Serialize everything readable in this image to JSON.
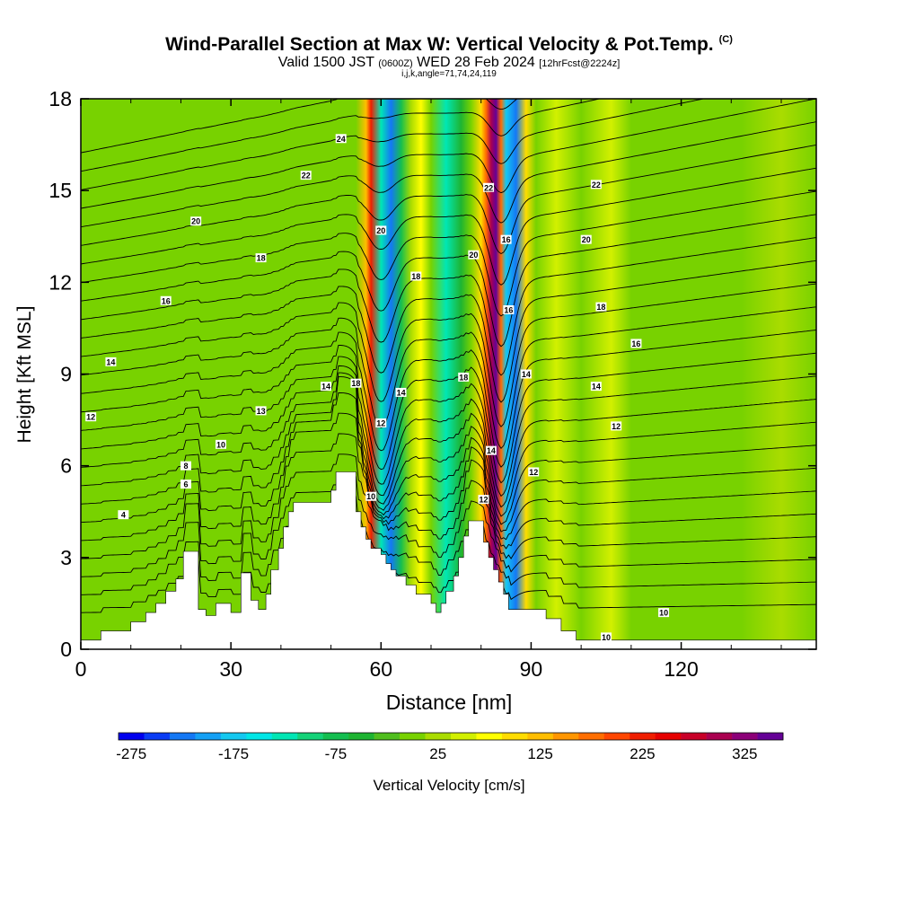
{
  "header": {
    "title": "Wind-Parallel Section at Max W: Vertical Velocity & Pot.Temp.",
    "copyright": "(C)",
    "valid_prefix": "Valid 1500 JST",
    "valid_utc": "(0600Z)",
    "valid_date": "WED 28 Feb 2024",
    "forecast": "[12hrFcst@2224z]",
    "ijk": "i,j,k,angle=71,74,24,119"
  },
  "chart_data": {
    "type": "heatmap",
    "xlabel": "Distance [nm]",
    "ylabel": "Height [Kft MSL]",
    "xlim": [
      0,
      147
    ],
    "ylim": [
      0,
      18
    ],
    "x_ticks": [
      0,
      30,
      60,
      90,
      120
    ],
    "y_ticks": [
      0,
      3,
      6,
      9,
      12,
      15,
      18
    ],
    "colorbar": {
      "label": "Vertical Velocity [cm/s]",
      "tick_labels": [
        "-275",
        "-175",
        "-75",
        "25",
        "125",
        "225",
        "325"
      ],
      "colors": [
        "#0000ee",
        "#0a3cf5",
        "#1478f5",
        "#14a0f5",
        "#14c8f0",
        "#00e6e6",
        "#00e6b4",
        "#14d278",
        "#14be50",
        "#1eb432",
        "#50be1e",
        "#78d200",
        "#aadc00",
        "#d2f000",
        "#ffff00",
        "#ffdc00",
        "#ffbe00",
        "#ff9600",
        "#ff6e00",
        "#ff4600",
        "#f01e00",
        "#e60000",
        "#c80028",
        "#aa0050",
        "#8c0078",
        "#640096"
      ]
    },
    "vertical_velocity_columns": [
      {
        "x": 0,
        "w": 10
      },
      {
        "x": 20,
        "w": 5
      },
      {
        "x": 35,
        "w": 20
      },
      {
        "x": 40,
        "w": 10
      },
      {
        "x": 48,
        "w": 10
      },
      {
        "x": 55,
        "w": 5
      },
      {
        "x": 57,
        "w": 140
      },
      {
        "x": 58,
        "w": 260
      },
      {
        "x": 60,
        "w": -150
      },
      {
        "x": 62,
        "w": -240
      },
      {
        "x": 64,
        "w": -80
      },
      {
        "x": 66,
        "w": 40
      },
      {
        "x": 68,
        "w": 90
      },
      {
        "x": 70,
        "w": 20
      },
      {
        "x": 73,
        "w": -140
      },
      {
        "x": 76,
        "w": -60
      },
      {
        "x": 78,
        "w": 10
      },
      {
        "x": 80,
        "w": 120
      },
      {
        "x": 81,
        "w": 220
      },
      {
        "x": 82,
        "w": 340
      },
      {
        "x": 83,
        "w": 420
      },
      {
        "x": 84,
        "w": 200
      },
      {
        "x": 85,
        "w": -200
      },
      {
        "x": 87,
        "w": -250
      },
      {
        "x": 89,
        "w": 110
      },
      {
        "x": 91,
        "w": 20
      },
      {
        "x": 95,
        "w": 60
      },
      {
        "x": 100,
        "w": 20
      },
      {
        "x": 106,
        "w": 50
      },
      {
        "x": 110,
        "w": 10
      },
      {
        "x": 120,
        "w": 10
      },
      {
        "x": 126,
        "w": 20
      },
      {
        "x": 132,
        "w": 5
      },
      {
        "x": 140,
        "w": 25
      },
      {
        "x": 147,
        "w": 10
      }
    ],
    "potential_temperature_labels": [
      {
        "text": "24",
        "x": 52,
        "y": 16.7
      },
      {
        "text": "22",
        "x": 45,
        "y": 15.5
      },
      {
        "text": "20",
        "x": 23,
        "y": 14.0
      },
      {
        "text": "18",
        "x": 36,
        "y": 12.8
      },
      {
        "text": "16",
        "x": 17,
        "y": 11.4
      },
      {
        "text": "14",
        "x": 6,
        "y": 9.4
      },
      {
        "text": "12",
        "x": 2,
        "y": 7.6
      },
      {
        "text": "4",
        "x": 8.5,
        "y": 4.4
      },
      {
        "text": "6",
        "x": 21,
        "y": 5.4
      },
      {
        "text": "8",
        "x": 21,
        "y": 6.0
      },
      {
        "text": "10",
        "x": 28,
        "y": 6.7
      },
      {
        "text": "13",
        "x": 36,
        "y": 7.8
      },
      {
        "text": "14",
        "x": 49,
        "y": 8.6
      },
      {
        "text": "18",
        "x": 55,
        "y": 8.7
      },
      {
        "text": "20",
        "x": 60,
        "y": 13.7
      },
      {
        "text": "18",
        "x": 67,
        "y": 12.2
      },
      {
        "text": "14",
        "x": 64,
        "y": 8.4
      },
      {
        "text": "12",
        "x": 60,
        "y": 7.4
      },
      {
        "text": "10",
        "x": 58,
        "y": 5.0
      },
      {
        "text": "22",
        "x": 81.5,
        "y": 15.1
      },
      {
        "text": "20",
        "x": 78.5,
        "y": 12.9
      },
      {
        "text": "18",
        "x": 76.5,
        "y": 8.9
      },
      {
        "text": "16",
        "x": 85,
        "y": 13.4
      },
      {
        "text": "16",
        "x": 85.5,
        "y": 11.1
      },
      {
        "text": "14",
        "x": 89,
        "y": 9.0
      },
      {
        "text": "14",
        "x": 82,
        "y": 6.5
      },
      {
        "text": "12",
        "x": 80.5,
        "y": 4.9
      },
      {
        "text": "12",
        "x": 90.5,
        "y": 5.8
      },
      {
        "text": "22",
        "x": 103,
        "y": 15.2
      },
      {
        "text": "20",
        "x": 101,
        "y": 13.4
      },
      {
        "text": "18",
        "x": 104,
        "y": 11.2
      },
      {
        "text": "16",
        "x": 111,
        "y": 10.0
      },
      {
        "text": "14",
        "x": 103,
        "y": 8.6
      },
      {
        "text": "12",
        "x": 107,
        "y": 7.3
      },
      {
        "text": "10",
        "x": 116.5,
        "y": 1.2
      },
      {
        "text": "10",
        "x": 105,
        "y": 0.4
      }
    ],
    "terrain": [
      [
        0,
        0.3
      ],
      [
        4,
        0.3
      ],
      [
        4,
        0.6
      ],
      [
        10,
        0.6
      ],
      [
        10,
        0.9
      ],
      [
        13,
        0.9
      ],
      [
        13,
        1.2
      ],
      [
        15,
        1.2
      ],
      [
        15,
        1.5
      ],
      [
        17,
        1.5
      ],
      [
        17,
        1.9
      ],
      [
        19,
        1.9
      ],
      [
        19,
        2.3
      ],
      [
        20.5,
        2.3
      ],
      [
        20.5,
        3.2
      ],
      [
        23.5,
        3.2
      ],
      [
        23.5,
        1.3
      ],
      [
        25,
        1.3
      ],
      [
        25,
        1.1
      ],
      [
        27,
        1.1
      ],
      [
        27,
        1.5
      ],
      [
        30,
        1.5
      ],
      [
        30,
        1.2
      ],
      [
        32,
        1.2
      ],
      [
        32,
        2.5
      ],
      [
        34,
        2.5
      ],
      [
        34,
        1.6
      ],
      [
        35.5,
        1.6
      ],
      [
        35.5,
        1.3
      ],
      [
        37,
        1.3
      ],
      [
        37,
        1.8
      ],
      [
        38,
        1.8
      ],
      [
        38,
        2.6
      ],
      [
        39.5,
        2.6
      ],
      [
        39.5,
        3.3
      ],
      [
        40.5,
        3.3
      ],
      [
        40.5,
        4.0
      ],
      [
        41.5,
        4.0
      ],
      [
        41.5,
        4.5
      ],
      [
        42.5,
        4.5
      ],
      [
        42.5,
        4.8
      ],
      [
        50,
        4.8
      ],
      [
        50,
        5.2
      ],
      [
        51,
        5.2
      ],
      [
        51,
        5.8
      ],
      [
        55,
        5.8
      ],
      [
        55,
        4.5
      ],
      [
        56,
        4.5
      ],
      [
        56,
        4.0
      ],
      [
        57,
        4.0
      ],
      [
        57,
        3.6
      ],
      [
        58,
        3.6
      ],
      [
        58,
        3.3
      ],
      [
        60,
        3.3
      ],
      [
        60,
        3.1
      ],
      [
        61,
        3.1
      ],
      [
        61,
        2.8
      ],
      [
        62,
        2.8
      ],
      [
        62,
        2.6
      ],
      [
        63,
        2.6
      ],
      [
        63,
        2.4
      ],
      [
        65,
        2.4
      ],
      [
        65,
        2.1
      ],
      [
        67,
        2.1
      ],
      [
        67,
        1.8
      ],
      [
        70,
        1.8
      ],
      [
        70,
        1.5
      ],
      [
        71,
        1.5
      ],
      [
        71,
        1.2
      ],
      [
        72,
        1.2
      ],
      [
        72,
        1.5
      ],
      [
        73,
        1.5
      ],
      [
        73,
        1.9
      ],
      [
        74.5,
        1.9
      ],
      [
        74.5,
        2.4
      ],
      [
        75.5,
        2.4
      ],
      [
        75.5,
        3.0
      ],
      [
        76.5,
        3.0
      ],
      [
        76.5,
        3.7
      ],
      [
        77.5,
        3.7
      ],
      [
        77.5,
        4.2
      ],
      [
        80.5,
        4.2
      ],
      [
        80.5,
        3.5
      ],
      [
        81.5,
        3.5
      ],
      [
        81.5,
        3.0
      ],
      [
        82.5,
        3.0
      ],
      [
        82.5,
        2.6
      ],
      [
        83.5,
        2.6
      ],
      [
        83.5,
        2.2
      ],
      [
        84.5,
        2.2
      ],
      [
        84.5,
        1.8
      ],
      [
        85.5,
        1.8
      ],
      [
        85.5,
        1.3
      ],
      [
        93,
        1.3
      ],
      [
        93,
        1.0
      ],
      [
        96,
        1.0
      ],
      [
        96,
        0.6
      ],
      [
        99,
        0.6
      ],
      [
        99,
        0.3
      ],
      [
        147,
        0.3
      ],
      [
        147,
        0
      ]
    ]
  }
}
